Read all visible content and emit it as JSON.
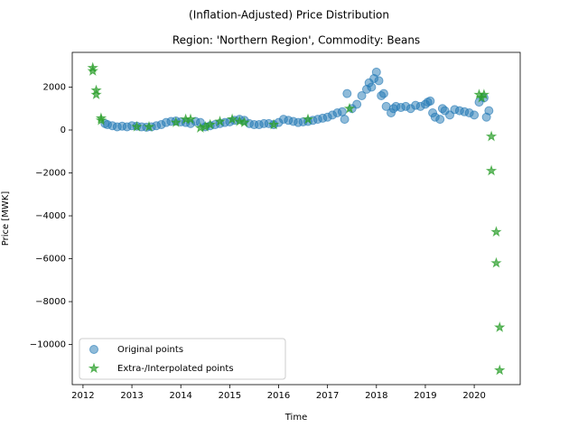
{
  "chart_data": {
    "type": "scatter",
    "suptitle": "(Inflation-Adjusted) Price Distribution",
    "title": "Region: 'Northern Region', Commodity: Beans",
    "xlabel": "Time",
    "ylabel": "Price [MWK]",
    "xlim": [
      2011.78,
      2020.94
    ],
    "xticks": [
      2012,
      2013,
      2014,
      2015,
      2016,
      2017,
      2018,
      2019,
      2020
    ],
    "ylim": [
      -11870,
      3620
    ],
    "yticks": [
      {
        "value": -10000,
        "label": "−10000"
      },
      {
        "value": -8000,
        "label": "−8000"
      },
      {
        "value": -6000,
        "label": "−6000"
      },
      {
        "value": -4000,
        "label": "−4000"
      },
      {
        "value": -2000,
        "label": "−2000"
      },
      0,
      2000
    ],
    "legend": "lower left",
    "series": [
      {
        "name": "Original points",
        "color": "#1f77b4",
        "marker": "circle",
        "x": [
          2012.45,
          2012.5,
          2012.6,
          2012.7,
          2012.8,
          2012.9,
          2013.0,
          2013.1,
          2013.2,
          2013.3,
          2013.4,
          2013.5,
          2013.6,
          2013.7,
          2013.8,
          2013.9,
          2014.0,
          2014.1,
          2014.2,
          2014.3,
          2014.4,
          2014.5,
          2014.6,
          2014.7,
          2014.8,
          2014.9,
          2015.0,
          2015.1,
          2015.2,
          2015.3,
          2015.4,
          2015.5,
          2015.6,
          2015.7,
          2015.8,
          2015.9,
          2016.0,
          2016.1,
          2016.2,
          2016.3,
          2016.4,
          2016.5,
          2016.6,
          2016.7,
          2016.8,
          2016.9,
          2017.0,
          2017.1,
          2017.2,
          2017.3,
          2017.35,
          2017.4,
          2017.5,
          2017.6,
          2017.7,
          2017.8,
          2017.85,
          2017.9,
          2017.95,
          2018.0,
          2018.05,
          2018.1,
          2018.15,
          2018.2,
          2018.3,
          2018.35,
          2018.4,
          2018.5,
          2018.6,
          2018.7,
          2018.8,
          2018.9,
          2019.0,
          2019.05,
          2019.1,
          2019.15,
          2019.2,
          2019.3,
          2019.35,
          2019.4,
          2019.5,
          2019.6,
          2019.7,
          2019.8,
          2019.9,
          2020.0,
          2020.1,
          2020.2,
          2020.25,
          2020.3
        ],
        "values": [
          300,
          250,
          200,
          150,
          180,
          150,
          200,
          180,
          150,
          130,
          150,
          200,
          250,
          350,
          400,
          420,
          380,
          350,
          300,
          400,
          350,
          150,
          200,
          250,
          300,
          350,
          380,
          450,
          500,
          450,
          300,
          250,
          250,
          300,
          300,
          250,
          350,
          500,
          450,
          400,
          350,
          380,
          400,
          450,
          500,
          550,
          600,
          700,
          800,
          850,
          500,
          1700,
          1000,
          1200,
          1600,
          1900,
          2200,
          2000,
          2400,
          2700,
          2300,
          1600,
          1700,
          1100,
          800,
          1000,
          1100,
          1050,
          1100,
          1000,
          1150,
          1100,
          1200,
          1300,
          1350,
          800,
          600,
          500,
          1000,
          900,
          700,
          950,
          900,
          850,
          800,
          700,
          1300,
          1500,
          600,
          900
        ]
      },
      {
        "name": "Extra-/Interpolated points",
        "color": "#2ca02c",
        "marker": "star",
        "x": [
          2012.2,
          2012.2,
          2012.27,
          2012.27,
          2012.37,
          2012.37,
          2013.1,
          2013.35,
          2013.9,
          2014.1,
          2014.2,
          2014.4,
          2014.5,
          2014.6,
          2014.8,
          2015.05,
          2015.2,
          2015.3,
          2015.9,
          2016.6,
          2017.45,
          2020.1,
          2020.15,
          2020.2,
          2020.35,
          2020.35,
          2020.45,
          2020.45,
          2020.52,
          2020.52
        ],
        "values": [
          2900,
          2750,
          1850,
          1650,
          550,
          450,
          150,
          150,
          350,
          500,
          500,
          100,
          150,
          250,
          400,
          500,
          400,
          350,
          250,
          500,
          1000,
          1650,
          1500,
          1650,
          -300,
          -1900,
          -4750,
          -6200,
          -9200,
          -11200
        ]
      }
    ]
  }
}
